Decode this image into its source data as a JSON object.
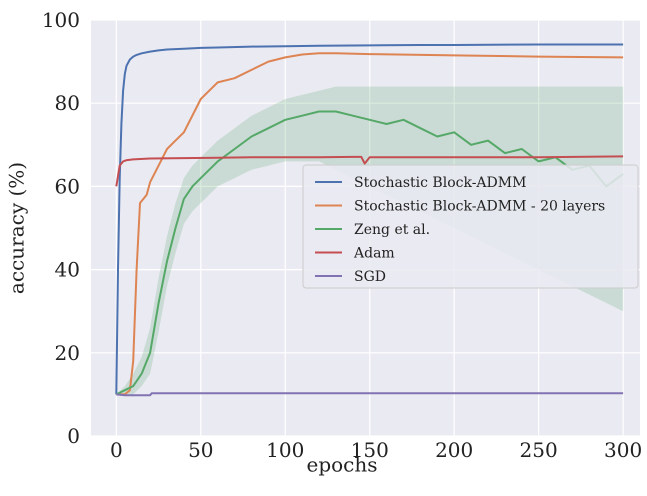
{
  "chart_data": {
    "type": "line",
    "title": "",
    "xlabel": "epochs",
    "ylabel": "accuracy (%)",
    "xlim": [
      -15,
      310
    ],
    "ylim": [
      0,
      100
    ],
    "xticks": [
      0,
      50,
      100,
      150,
      200,
      250,
      300
    ],
    "yticks": [
      0,
      20,
      40,
      60,
      80,
      100
    ],
    "grid": true,
    "background": "#eaeaf2",
    "legend_position": "center-right",
    "series": [
      {
        "name": "Stochastic Block-ADMM",
        "color": "#4c72b0",
        "x": [
          0,
          1,
          2,
          3,
          4,
          5,
          6,
          8,
          10,
          12,
          15,
          20,
          25,
          30,
          40,
          50,
          60,
          80,
          100,
          120,
          150,
          180,
          200,
          250,
          300
        ],
        "y": [
          10,
          40,
          62,
          75,
          83,
          87,
          89,
          90.5,
          91.2,
          91.6,
          92,
          92.4,
          92.7,
          92.9,
          93.1,
          93.3,
          93.4,
          93.6,
          93.7,
          93.8,
          93.9,
          94,
          94,
          94.1,
          94.1
        ]
      },
      {
        "name": "Stochastic Block-ADMM - 20 layers",
        "color": "#dd8452",
        "x": [
          0,
          5,
          8,
          10,
          12,
          14,
          16,
          18,
          20,
          25,
          30,
          35,
          40,
          50,
          55,
          60,
          70,
          80,
          90,
          100,
          110,
          120,
          130,
          150,
          200,
          250,
          300
        ],
        "y": [
          10,
          10,
          11,
          18,
          40,
          56,
          57,
          58,
          61,
          65,
          69,
          71,
          73,
          81,
          83,
          85,
          86,
          88,
          90,
          91,
          91.7,
          92,
          92,
          91.8,
          91.5,
          91.2,
          91
        ]
      },
      {
        "name": "Zeng et al.",
        "color": "#55a868",
        "x": [
          0,
          5,
          10,
          15,
          20,
          25,
          30,
          35,
          40,
          45,
          50,
          60,
          70,
          80,
          90,
          100,
          110,
          120,
          130,
          140,
          150,
          160,
          170,
          180,
          190,
          200,
          210,
          220,
          230,
          240,
          250,
          260,
          270,
          280,
          290,
          300
        ],
        "y": [
          10,
          11,
          12,
          15,
          20,
          32,
          42,
          50,
          57,
          60,
          62,
          66,
          69,
          72,
          74,
          76,
          77,
          78,
          78,
          77,
          76,
          75,
          76,
          74,
          72,
          73,
          70,
          71,
          68,
          69,
          66,
          67,
          64,
          65,
          60,
          63
        ],
        "band": {
          "lower": [
            10,
            10,
            10,
            12,
            15,
            25,
            36,
            44,
            51,
            54,
            56,
            60,
            62,
            64,
            65,
            66,
            66,
            66,
            64,
            62,
            60,
            58,
            56,
            54,
            52,
            50,
            48,
            46,
            44,
            42,
            40,
            38,
            36,
            34,
            32,
            30
          ],
          "upper": [
            10,
            12,
            15,
            19,
            26,
            38,
            48,
            56,
            62,
            65,
            67,
            71,
            74,
            77,
            79,
            81,
            82,
            83,
            84,
            84,
            84,
            84,
            84,
            84,
            84,
            84,
            84,
            84,
            84,
            84,
            84,
            84,
            84,
            84,
            84,
            84
          ]
        }
      },
      {
        "name": "Adam",
        "color": "#c44e52",
        "x": [
          0,
          2,
          4,
          6,
          10,
          20,
          40,
          60,
          80,
          100,
          120,
          140,
          145,
          147,
          150,
          180,
          200,
          250,
          300
        ],
        "y": [
          60,
          65,
          66,
          66.3,
          66.5,
          66.7,
          66.8,
          66.9,
          67,
          67,
          67,
          67.1,
          67.1,
          65.5,
          67,
          67,
          67,
          67,
          67.2
        ]
      },
      {
        "name": "SGD",
        "color": "#8172b2",
        "x": [
          0,
          5,
          10,
          15,
          20,
          21,
          25,
          50,
          100,
          150,
          200,
          250,
          300
        ],
        "y": [
          10,
          9.8,
          9.8,
          9.8,
          9.8,
          10.3,
          10.3,
          10.3,
          10.3,
          10.3,
          10.3,
          10.3,
          10.3
        ]
      }
    ]
  }
}
